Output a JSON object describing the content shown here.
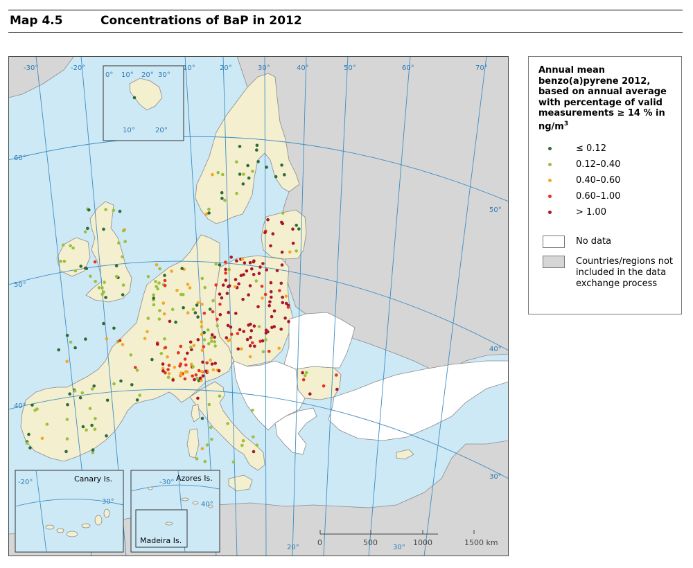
{
  "header": {
    "map_number": "Map 4.5",
    "title": "Concentrations of BaP in 2012"
  },
  "legend": {
    "title": "Annual mean benzo(a)pyrene 2012, based on annual average with percentage of valid measurements ≥ 14 % in ng/m",
    "title_superscript": "3",
    "classes": [
      {
        "label": "≤ 0.12",
        "color": "#2e6b35"
      },
      {
        "label": "0.12–0.40",
        "color": "#9cbf3c"
      },
      {
        "label": "0.40–0.60",
        "color": "#f5a623"
      },
      {
        "label": "0.60–1.00",
        "color": "#e63222"
      },
      {
        "label": "> 1.00",
        "color": "#a8162a"
      }
    ],
    "no_data_label": "No data",
    "no_data_color": "#ffffff",
    "excluded_label": "Countries/regions not included in the data exchange process",
    "excluded_color": "#d6d6d6"
  },
  "map": {
    "sea_color": "#cde9f6",
    "reporting_land_color": "#f3efcf",
    "graticule_color": "#3d8dc4",
    "graticule_labels": {
      "top": [
        "-30°",
        "-20°",
        "10°",
        "20°",
        "30°",
        "40°",
        "50°",
        "60°",
        "70°"
      ],
      "left": [
        "60°",
        "50°",
        "40°"
      ],
      "right": [
        "50°",
        "40°",
        "30°"
      ],
      "bottom": [
        "20°",
        "30°"
      ]
    },
    "inset_svalbard_labels": {
      "top": [
        "0°",
        "10°",
        "20°",
        "30°"
      ],
      "bottom": [
        "10°",
        "20°"
      ]
    },
    "insets": {
      "canary": {
        "name": "Canary Is.",
        "labels": [
          "-20°",
          "30°"
        ]
      },
      "azores": {
        "name": "Azores Is.",
        "labels": [
          "-30°",
          "40°"
        ]
      },
      "madeira": {
        "name": "Madeira Is."
      }
    },
    "scale_bar": {
      "labels": [
        "0",
        "500",
        "1000",
        "1500 km"
      ]
    }
  }
}
